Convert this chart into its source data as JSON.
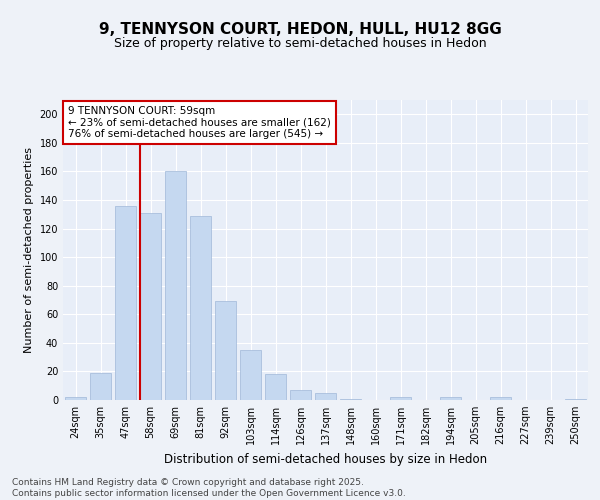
{
  "title_line1": "9, TENNYSON COURT, HEDON, HULL, HU12 8GG",
  "title_line2": "Size of property relative to semi-detached houses in Hedon",
  "xlabel": "Distribution of semi-detached houses by size in Hedon",
  "ylabel": "Number of semi-detached properties",
  "categories": [
    "24sqm",
    "35sqm",
    "47sqm",
    "58sqm",
    "69sqm",
    "81sqm",
    "92sqm",
    "103sqm",
    "114sqm",
    "126sqm",
    "137sqm",
    "148sqm",
    "160sqm",
    "171sqm",
    "182sqm",
    "194sqm",
    "205sqm",
    "216sqm",
    "227sqm",
    "239sqm",
    "250sqm"
  ],
  "values": [
    2,
    19,
    136,
    131,
    160,
    129,
    69,
    35,
    18,
    7,
    5,
    1,
    0,
    2,
    0,
    2,
    0,
    2,
    0,
    0,
    1
  ],
  "bar_color": "#c5d8f0",
  "bar_edge_color": "#a0b8d8",
  "background_color": "#e8eef8",
  "fig_background_color": "#eef2f8",
  "grid_color": "#ffffff",
  "red_line_index": 3,
  "annotation_text": "9 TENNYSON COURT: 59sqm\n← 23% of semi-detached houses are smaller (162)\n76% of semi-detached houses are larger (545) →",
  "annotation_box_color": "#ffffff",
  "annotation_edge_color": "#cc0000",
  "ylim": [
    0,
    210
  ],
  "yticks": [
    0,
    20,
    40,
    60,
    80,
    100,
    120,
    140,
    160,
    180,
    200
  ],
  "footer_text": "Contains HM Land Registry data © Crown copyright and database right 2025.\nContains public sector information licensed under the Open Government Licence v3.0.",
  "title_fontsize": 11,
  "subtitle_fontsize": 9,
  "tick_fontsize": 7,
  "ylabel_fontsize": 8,
  "xlabel_fontsize": 8.5,
  "annotation_fontsize": 7.5,
  "footer_fontsize": 6.5
}
